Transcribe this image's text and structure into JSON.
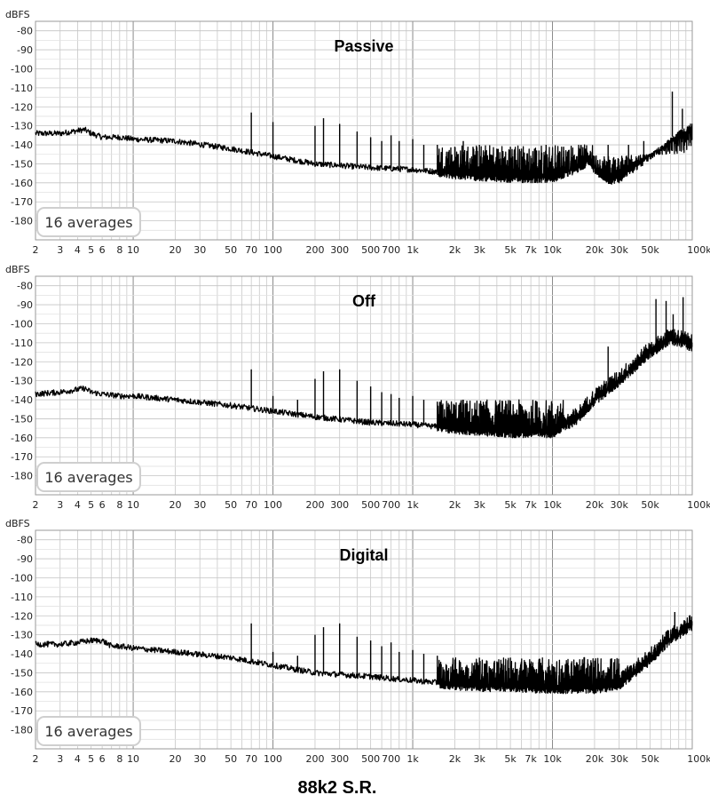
{
  "figure_title": "88k2 S.R.",
  "chart_data": [
    {
      "type": "line",
      "title": "Passive",
      "ylabel": "dBFS",
      "x_scale": "log",
      "xlim": [
        2,
        100000
      ],
      "ylim": [
        -190,
        -75
      ],
      "grid": true,
      "y_ticks": [
        "-80",
        "-90",
        "-100",
        "-110",
        "-120",
        "-130",
        "-140",
        "-150",
        "-160",
        "-170",
        "-180"
      ],
      "x_ticks": [
        "2",
        "3",
        "4",
        "5",
        "6",
        "8",
        "10",
        "20",
        "30",
        "50",
        "70",
        "100",
        "200",
        "300",
        "500",
        "700",
        "1k",
        "2k",
        "3k",
        "5k",
        "7k",
        "10k",
        "20k",
        "30k",
        "50k",
        "100kHz"
      ],
      "annotation": "16 averages",
      "baseline": [
        [
          2,
          -134
        ],
        [
          3,
          -134
        ],
        [
          4.5,
          -132
        ],
        [
          5,
          -134
        ],
        [
          6,
          -136
        ],
        [
          8,
          -136
        ],
        [
          10,
          -137
        ],
        [
          20,
          -138
        ],
        [
          50,
          -142
        ],
        [
          100,
          -146
        ],
        [
          200,
          -150
        ],
        [
          500,
          -152
        ],
        [
          1000,
          -153
        ],
        [
          2000,
          -155
        ],
        [
          3000,
          -156
        ],
        [
          5000,
          -157
        ],
        [
          10000,
          -157
        ],
        [
          15000,
          -152
        ],
        [
          18000,
          -148
        ],
        [
          20000,
          -152
        ],
        [
          25000,
          -158
        ],
        [
          30000,
          -157
        ],
        [
          50000,
          -145
        ],
        [
          80000,
          -133
        ],
        [
          100000,
          -128
        ]
      ],
      "spikes": [
        [
          70,
          -123
        ],
        [
          100,
          -128
        ],
        [
          200,
          -130
        ],
        [
          230,
          -126
        ],
        [
          300,
          -129
        ],
        [
          400,
          -133
        ],
        [
          500,
          -136
        ],
        [
          600,
          -138
        ],
        [
          700,
          -135
        ],
        [
          800,
          -138
        ],
        [
          1000,
          -137
        ],
        [
          1200,
          -140
        ],
        [
          1500,
          -140
        ],
        [
          2000,
          -141
        ],
        [
          2300,
          -138
        ],
        [
          2700,
          -141
        ],
        [
          3000,
          -140
        ],
        [
          4000,
          -142
        ],
        [
          5000,
          -141
        ],
        [
          6000,
          -142
        ],
        [
          8000,
          -143
        ],
        [
          9000,
          -140
        ],
        [
          12000,
          -141
        ],
        [
          16000,
          -140
        ],
        [
          25000,
          -140
        ],
        [
          35000,
          -140
        ],
        [
          45000,
          -138
        ],
        [
          72000,
          -112
        ],
        [
          85000,
          -121
        ]
      ],
      "noise_bands": [
        [
          1500,
          20000,
          -140
        ],
        [
          20000,
          100000,
          -145
        ]
      ]
    },
    {
      "type": "line",
      "title": "Off",
      "ylabel": "dBFS",
      "x_scale": "log",
      "xlim": [
        2,
        100000
      ],
      "ylim": [
        -190,
        -75
      ],
      "grid": true,
      "y_ticks": [
        "-80",
        "-90",
        "-100",
        "-110",
        "-120",
        "-130",
        "-140",
        "-150",
        "-160",
        "-170",
        "-180"
      ],
      "x_ticks": [
        "2",
        "3",
        "4",
        "5",
        "6",
        "8",
        "10",
        "20",
        "30",
        "50",
        "70",
        "100",
        "200",
        "300",
        "500",
        "700",
        "1k",
        "2k",
        "3k",
        "5k",
        "7k",
        "10k",
        "20k",
        "30k",
        "50k",
        "100kHz"
      ],
      "annotation": "16 averages",
      "baseline": [
        [
          2,
          -137
        ],
        [
          3,
          -136
        ],
        [
          4.5,
          -134
        ],
        [
          5,
          -136
        ],
        [
          6,
          -137
        ],
        [
          8,
          -138
        ],
        [
          10,
          -138
        ],
        [
          20,
          -140
        ],
        [
          50,
          -143
        ],
        [
          100,
          -146
        ],
        [
          200,
          -149
        ],
        [
          500,
          -152
        ],
        [
          1000,
          -153
        ],
        [
          2000,
          -155
        ],
        [
          3000,
          -156
        ],
        [
          5000,
          -157
        ],
        [
          10000,
          -157
        ],
        [
          15000,
          -150
        ],
        [
          20000,
          -140
        ],
        [
          30000,
          -130
        ],
        [
          50000,
          -115
        ],
        [
          70000,
          -108
        ],
        [
          90000,
          -110
        ],
        [
          100000,
          -112
        ]
      ],
      "spikes": [
        [
          70,
          -124
        ],
        [
          100,
          -138
        ],
        [
          150,
          -140
        ],
        [
          200,
          -129
        ],
        [
          230,
          -125
        ],
        [
          300,
          -124
        ],
        [
          400,
          -130
        ],
        [
          500,
          -133
        ],
        [
          600,
          -136
        ],
        [
          700,
          -137
        ],
        [
          800,
          -139
        ],
        [
          1000,
          -138
        ],
        [
          1200,
          -140
        ],
        [
          1500,
          -141
        ],
        [
          2000,
          -143
        ],
        [
          2300,
          -140
        ],
        [
          3000,
          -142
        ],
        [
          4000,
          -143
        ],
        [
          5000,
          -142
        ],
        [
          6000,
          -143
        ],
        [
          8000,
          -144
        ],
        [
          25000,
          -112
        ],
        [
          55000,
          -87
        ],
        [
          65000,
          -88
        ],
        [
          73000,
          -95
        ],
        [
          86000,
          -86
        ]
      ],
      "noise_bands": [
        [
          1500,
          12000,
          -140
        ]
      ]
    },
    {
      "type": "line",
      "title": "Digital",
      "ylabel": "dBFS",
      "x_scale": "log",
      "xlim": [
        2,
        100000
      ],
      "ylim": [
        -190,
        -75
      ],
      "grid": true,
      "y_ticks": [
        "-80",
        "-90",
        "-100",
        "-110",
        "-120",
        "-130",
        "-140",
        "-150",
        "-160",
        "-170",
        "-180"
      ],
      "x_ticks": [
        "2",
        "3",
        "4",
        "5",
        "6",
        "8",
        "10",
        "20",
        "30",
        "50",
        "70",
        "100",
        "200",
        "300",
        "500",
        "700",
        "1k",
        "2k",
        "3k",
        "5k",
        "7k",
        "10k",
        "20k",
        "30k",
        "50k",
        "100kHz"
      ],
      "annotation": "16 averages",
      "baseline": [
        [
          2,
          -135
        ],
        [
          3,
          -135
        ],
        [
          4,
          -134
        ],
        [
          5,
          -133
        ],
        [
          6,
          -133
        ],
        [
          7,
          -136
        ],
        [
          8,
          -136
        ],
        [
          10,
          -137
        ],
        [
          20,
          -139
        ],
        [
          50,
          -142
        ],
        [
          100,
          -146
        ],
        [
          200,
          -150
        ],
        [
          500,
          -152
        ],
        [
          1000,
          -154
        ],
        [
          2000,
          -156
        ],
        [
          3000,
          -157
        ],
        [
          5000,
          -157
        ],
        [
          10000,
          -158
        ],
        [
          20000,
          -158
        ],
        [
          30000,
          -156
        ],
        [
          50000,
          -143
        ],
        [
          70000,
          -132
        ],
        [
          100000,
          -125
        ]
      ],
      "spikes": [
        [
          70,
          -124
        ],
        [
          100,
          -139
        ],
        [
          150,
          -141
        ],
        [
          200,
          -130
        ],
        [
          230,
          -126
        ],
        [
          300,
          -124
        ],
        [
          400,
          -131
        ],
        [
          500,
          -133
        ],
        [
          600,
          -136
        ],
        [
          700,
          -134
        ],
        [
          800,
          -139
        ],
        [
          1000,
          -138
        ],
        [
          1200,
          -140
        ],
        [
          1500,
          -141
        ],
        [
          2000,
          -143
        ],
        [
          3000,
          -142
        ],
        [
          4000,
          -144
        ],
        [
          5000,
          -142
        ],
        [
          6000,
          -144
        ],
        [
          8000,
          -143
        ],
        [
          75000,
          -118
        ]
      ],
      "noise_bands": [
        [
          1500,
          30000,
          -142
        ]
      ]
    }
  ]
}
